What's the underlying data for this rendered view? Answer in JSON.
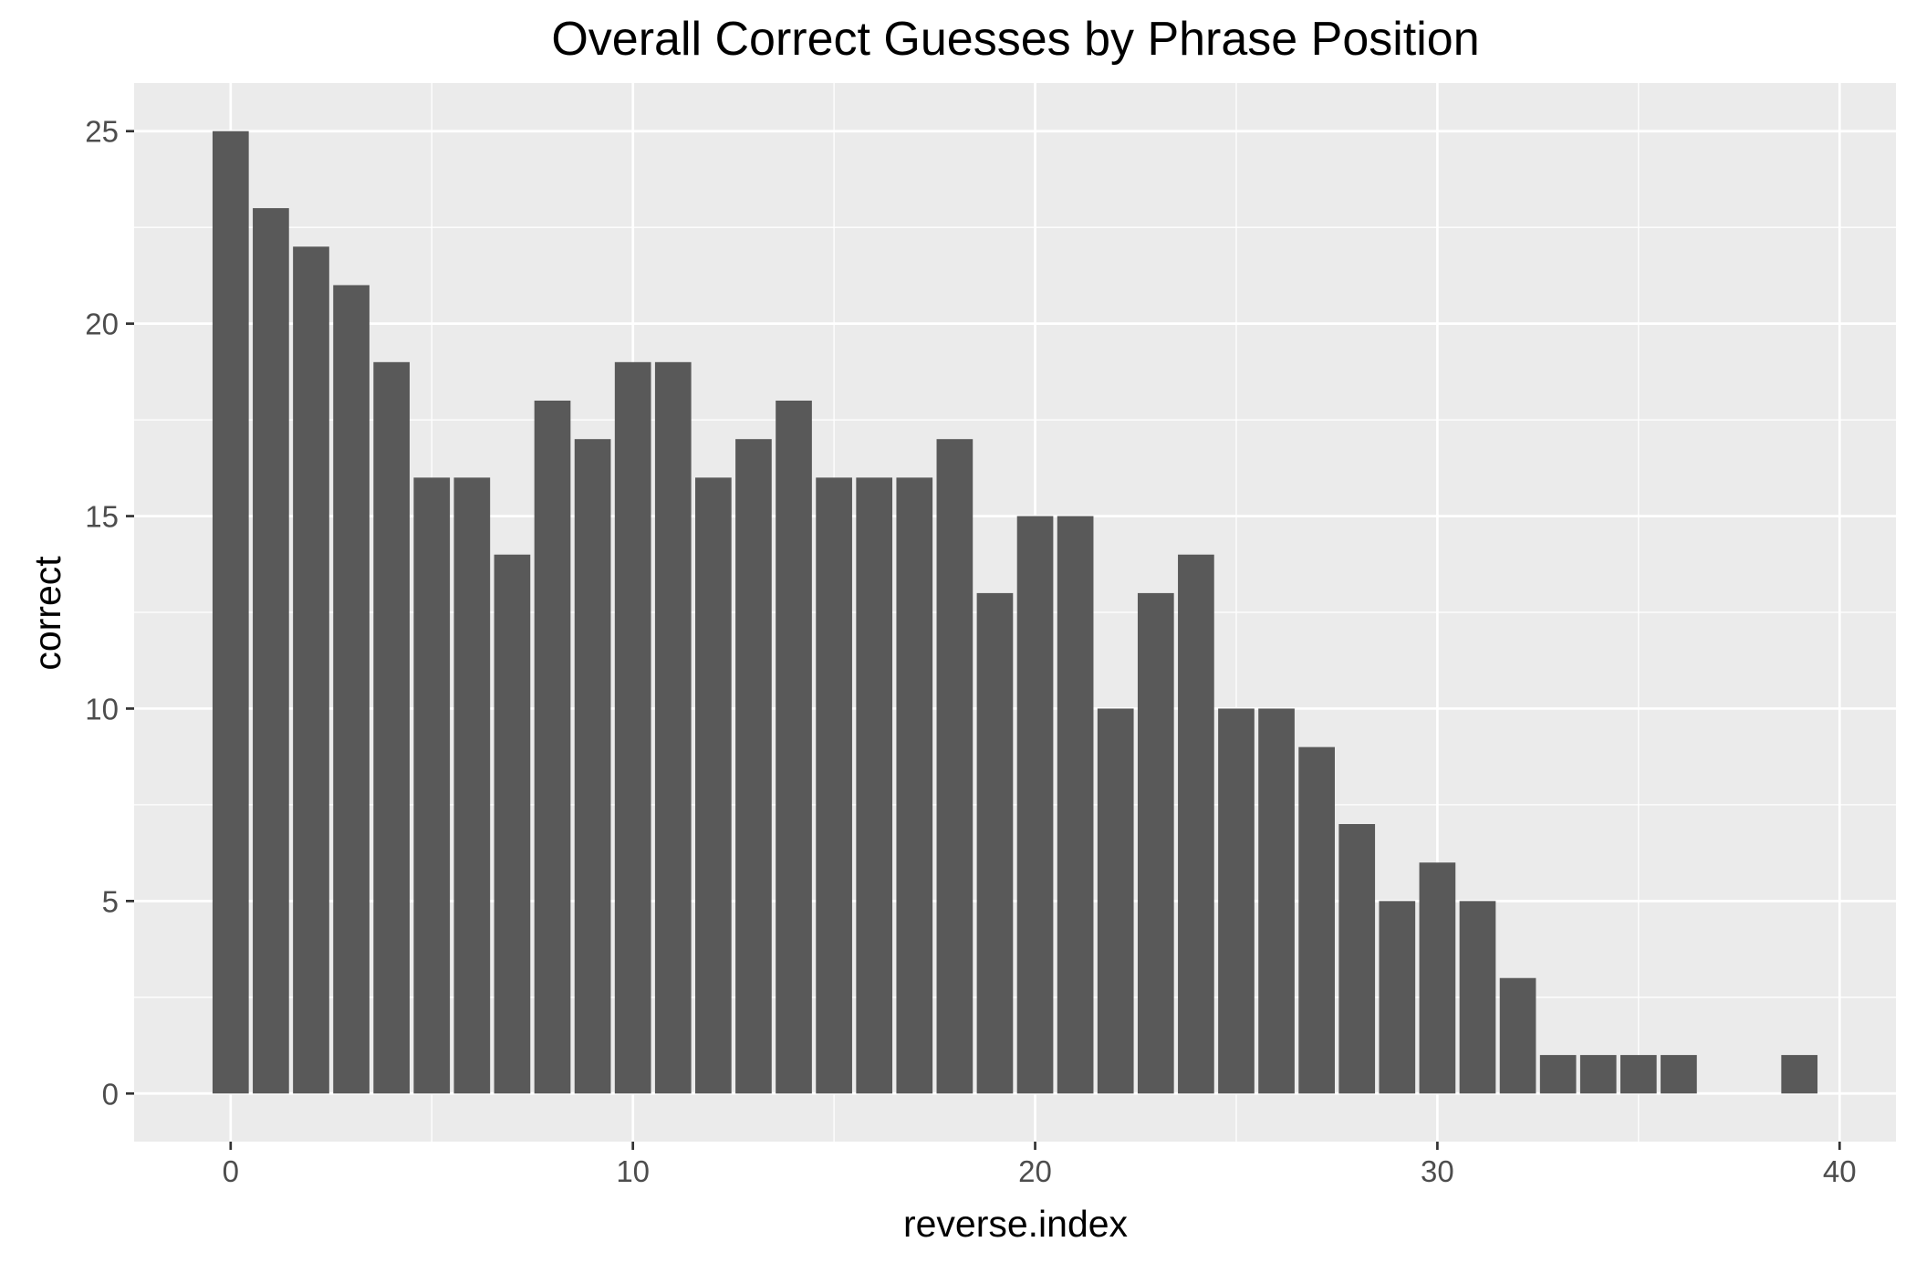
{
  "chart_data": {
    "type": "bar",
    "title": "Overall Correct Guesses by Phrase Position",
    "xlabel": "reverse.index",
    "ylabel": "correct",
    "x": [
      0,
      1,
      2,
      3,
      4,
      5,
      6,
      7,
      8,
      9,
      10,
      11,
      12,
      13,
      14,
      15,
      16,
      17,
      18,
      19,
      20,
      21,
      22,
      23,
      24,
      25,
      26,
      27,
      28,
      29,
      30,
      31,
      32,
      33,
      34,
      35,
      36,
      39
    ],
    "values": [
      25,
      23,
      22,
      21,
      19,
      16,
      16,
      14,
      18,
      17,
      19,
      19,
      16,
      17,
      18,
      16,
      16,
      16,
      17,
      13,
      15,
      15,
      10,
      13,
      14,
      10,
      10,
      9,
      7,
      5,
      6,
      5,
      3,
      1,
      1,
      1,
      1,
      1
    ],
    "xlim": [
      -2.4,
      41.4
    ],
    "ylim": [
      -1.25,
      26.25
    ],
    "xticks": [
      0,
      10,
      20,
      30,
      40
    ],
    "xtick_labels": [
      "0",
      "10",
      "20",
      "30",
      "40"
    ],
    "yticks": [
      0,
      5,
      10,
      15,
      20,
      25
    ],
    "ytick_labels": [
      "0",
      "5",
      "10",
      "15",
      "20",
      "25"
    ],
    "grid": true,
    "legend": "none",
    "colors": {
      "bar": "#595959",
      "panel": "#ebebeb",
      "grid_major": "#ffffff",
      "grid_minor": "#ffffff",
      "tick_text": "#4d4d4d",
      "tick_mark": "#333333",
      "text": "#000000"
    }
  }
}
